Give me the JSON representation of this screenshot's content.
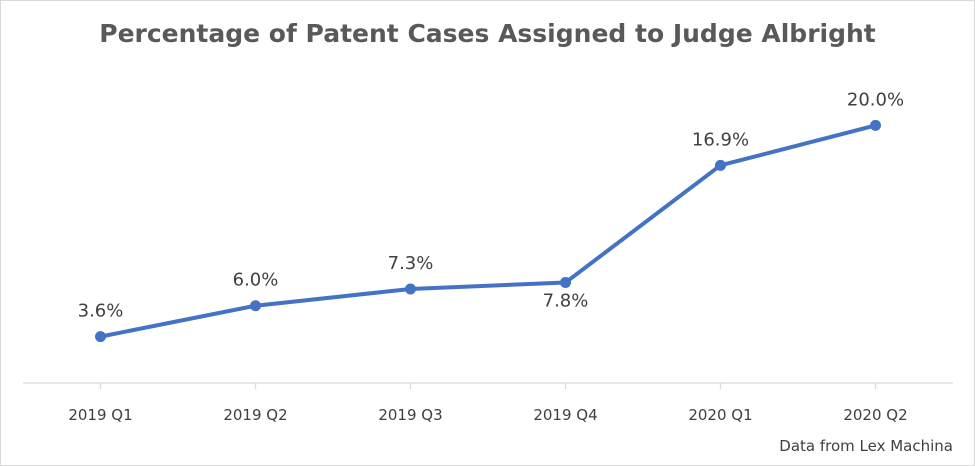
{
  "chart_data": {
    "type": "line",
    "title": "Percentage of Patent Cases Assigned to Judge Albright",
    "xlabel": "",
    "ylabel": "",
    "categories": [
      "2019 Q1",
      "2019 Q2",
      "2019 Q3",
      "2019 Q4",
      "2020 Q1",
      "2020 Q2"
    ],
    "series": [
      {
        "values": [
          3.6,
          6.0,
          7.3,
          7.8,
          16.9,
          20.0
        ],
        "data_labels": [
          "3.6%",
          "6.0%",
          "7.3%",
          "7.8%",
          "16.9%",
          "20.0%"
        ],
        "color": "#4472c4"
      }
    ],
    "ylim": [
      0,
      25
    ],
    "grid": false,
    "legend": "none"
  },
  "source_note": "Data from Lex Machina",
  "colors": {
    "line": "#4472c4",
    "title": "#595959",
    "axis": "#d9d9d9",
    "text": "#404040"
  }
}
